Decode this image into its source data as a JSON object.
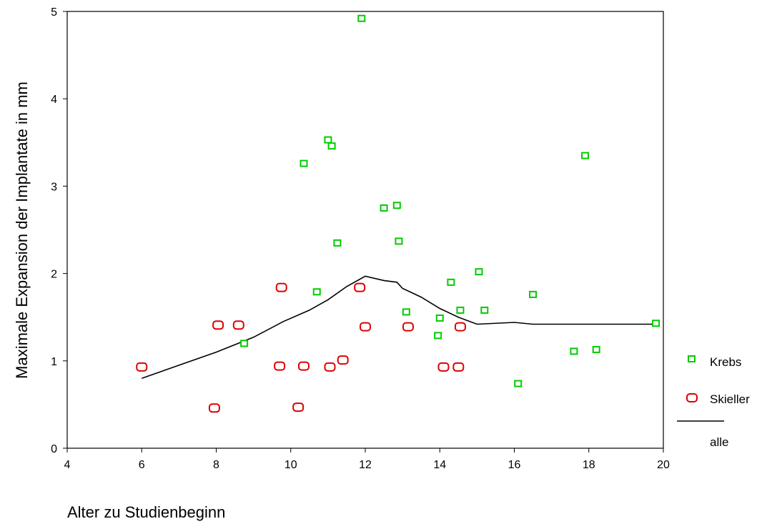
{
  "chart_data": {
    "type": "scatter",
    "title": "",
    "xlabel": "Alter zu Studienbeginn",
    "ylabel": "Maximale Expansion der Implantate in mm",
    "xlim": [
      4,
      20
    ],
    "ylim": [
      0,
      5
    ],
    "xticks": [
      "4",
      "6",
      "8",
      "10",
      "12",
      "14",
      "16",
      "18",
      "20"
    ],
    "yticks": [
      "0",
      "1",
      "2",
      "3",
      "4",
      "5"
    ],
    "grid": false,
    "legend_position": "right",
    "series": [
      {
        "name": "Krebs",
        "marker": "square",
        "color": "#00cc00",
        "points": [
          [
            8.75,
            1.2
          ],
          [
            10.35,
            3.26
          ],
          [
            10.7,
            1.79
          ],
          [
            11.0,
            3.53
          ],
          [
            11.1,
            3.46
          ],
          [
            11.25,
            2.35
          ],
          [
            11.9,
            4.92
          ],
          [
            12.5,
            2.75
          ],
          [
            12.85,
            2.78
          ],
          [
            12.9,
            2.37
          ],
          [
            13.1,
            1.56
          ],
          [
            13.95,
            1.29
          ],
          [
            14.0,
            1.49
          ],
          [
            14.3,
            1.9
          ],
          [
            14.55,
            1.58
          ],
          [
            15.05,
            2.02
          ],
          [
            15.2,
            1.58
          ],
          [
            16.1,
            0.74
          ],
          [
            16.5,
            1.76
          ],
          [
            17.6,
            1.11
          ],
          [
            17.9,
            3.35
          ],
          [
            18.2,
            1.13
          ],
          [
            19.8,
            1.43
          ]
        ]
      },
      {
        "name": "Skieller",
        "marker": "rounded-square",
        "color": "#dd0000",
        "points": [
          [
            6.0,
            0.93
          ],
          [
            7.95,
            0.46
          ],
          [
            8.05,
            1.41
          ],
          [
            8.6,
            1.41
          ],
          [
            9.7,
            0.94
          ],
          [
            9.75,
            1.84
          ],
          [
            10.2,
            0.47
          ],
          [
            10.35,
            0.94
          ],
          [
            11.05,
            0.93
          ],
          [
            11.4,
            1.01
          ],
          [
            11.85,
            1.84
          ],
          [
            12.0,
            1.39
          ],
          [
            13.15,
            1.39
          ],
          [
            14.1,
            0.93
          ],
          [
            14.5,
            0.93
          ],
          [
            14.55,
            1.39
          ]
        ]
      },
      {
        "name": "alle",
        "marker": "line",
        "color": "#000000",
        "points": [
          [
            6.0,
            0.8
          ],
          [
            7.0,
            0.95
          ],
          [
            8.0,
            1.1
          ],
          [
            9.0,
            1.27
          ],
          [
            9.8,
            1.45
          ],
          [
            10.5,
            1.58
          ],
          [
            11.0,
            1.7
          ],
          [
            11.5,
            1.85
          ],
          [
            12.0,
            1.97
          ],
          [
            12.5,
            1.92
          ],
          [
            12.85,
            1.9
          ],
          [
            13.0,
            1.83
          ],
          [
            13.5,
            1.73
          ],
          [
            14.0,
            1.6
          ],
          [
            14.5,
            1.5
          ],
          [
            15.0,
            1.42
          ],
          [
            16.0,
            1.44
          ],
          [
            16.5,
            1.42
          ],
          [
            19.8,
            1.42
          ]
        ]
      }
    ]
  }
}
